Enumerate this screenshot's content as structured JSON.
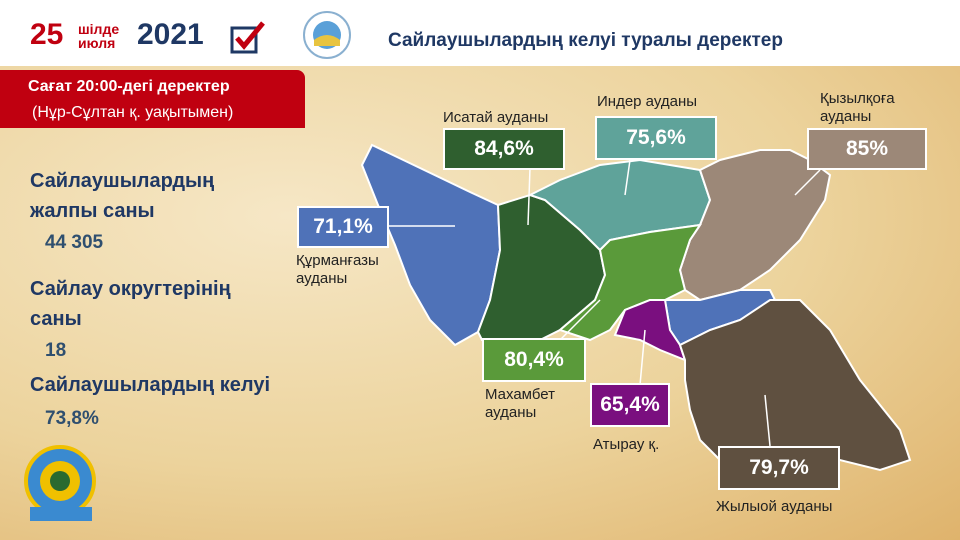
{
  "header": {
    "day": "25",
    "month_top": "шілде",
    "month_bottom": "июля",
    "year": "2021",
    "title": "Сайлаушылардың келуі туралы деректер"
  },
  "badge": {
    "line1": "Сағат 20:00-дегі деректер",
    "line2": "(Нұр-Сұлтан  қ. уақытымен)"
  },
  "stats": [
    {
      "label_lines": [
        "Сайлаушылардың",
        "жалпы саны"
      ],
      "value": "44 305"
    },
    {
      "label_lines": [
        "Сайлау округтерінің",
        "саны"
      ],
      "value": "18"
    },
    {
      "label_lines": [
        "Сайлаушылардың келуі"
      ],
      "value": "73,8%"
    }
  ],
  "regions": [
    {
      "name_lines": [
        "Құрманғазы",
        "ауданы"
      ],
      "value": "71,1%",
      "color": "#4f72b8"
    },
    {
      "name_lines": [
        "Исатай ауданы"
      ],
      "value": "84,6%",
      "color": "#2f5f2f"
    },
    {
      "name_lines": [
        "Индер ауданы"
      ],
      "value": "75,6%",
      "color": "#5fa39a"
    },
    {
      "name_lines": [
        "Қызылқоға",
        "ауданы"
      ],
      "value": "85%",
      "color": "#9c8878"
    },
    {
      "name_lines": [
        "Махамбет",
        "ауданы"
      ],
      "value": "80,4%",
      "color": "#5a9a3a"
    },
    {
      "name_lines": [
        "Атырау қ."
      ],
      "value": "65,4%",
      "color": "#7a0f7f"
    },
    {
      "name_lines": [
        "Жылыой ауданы"
      ],
      "value": "79,7%",
      "color": "#5f5040"
    }
  ]
}
